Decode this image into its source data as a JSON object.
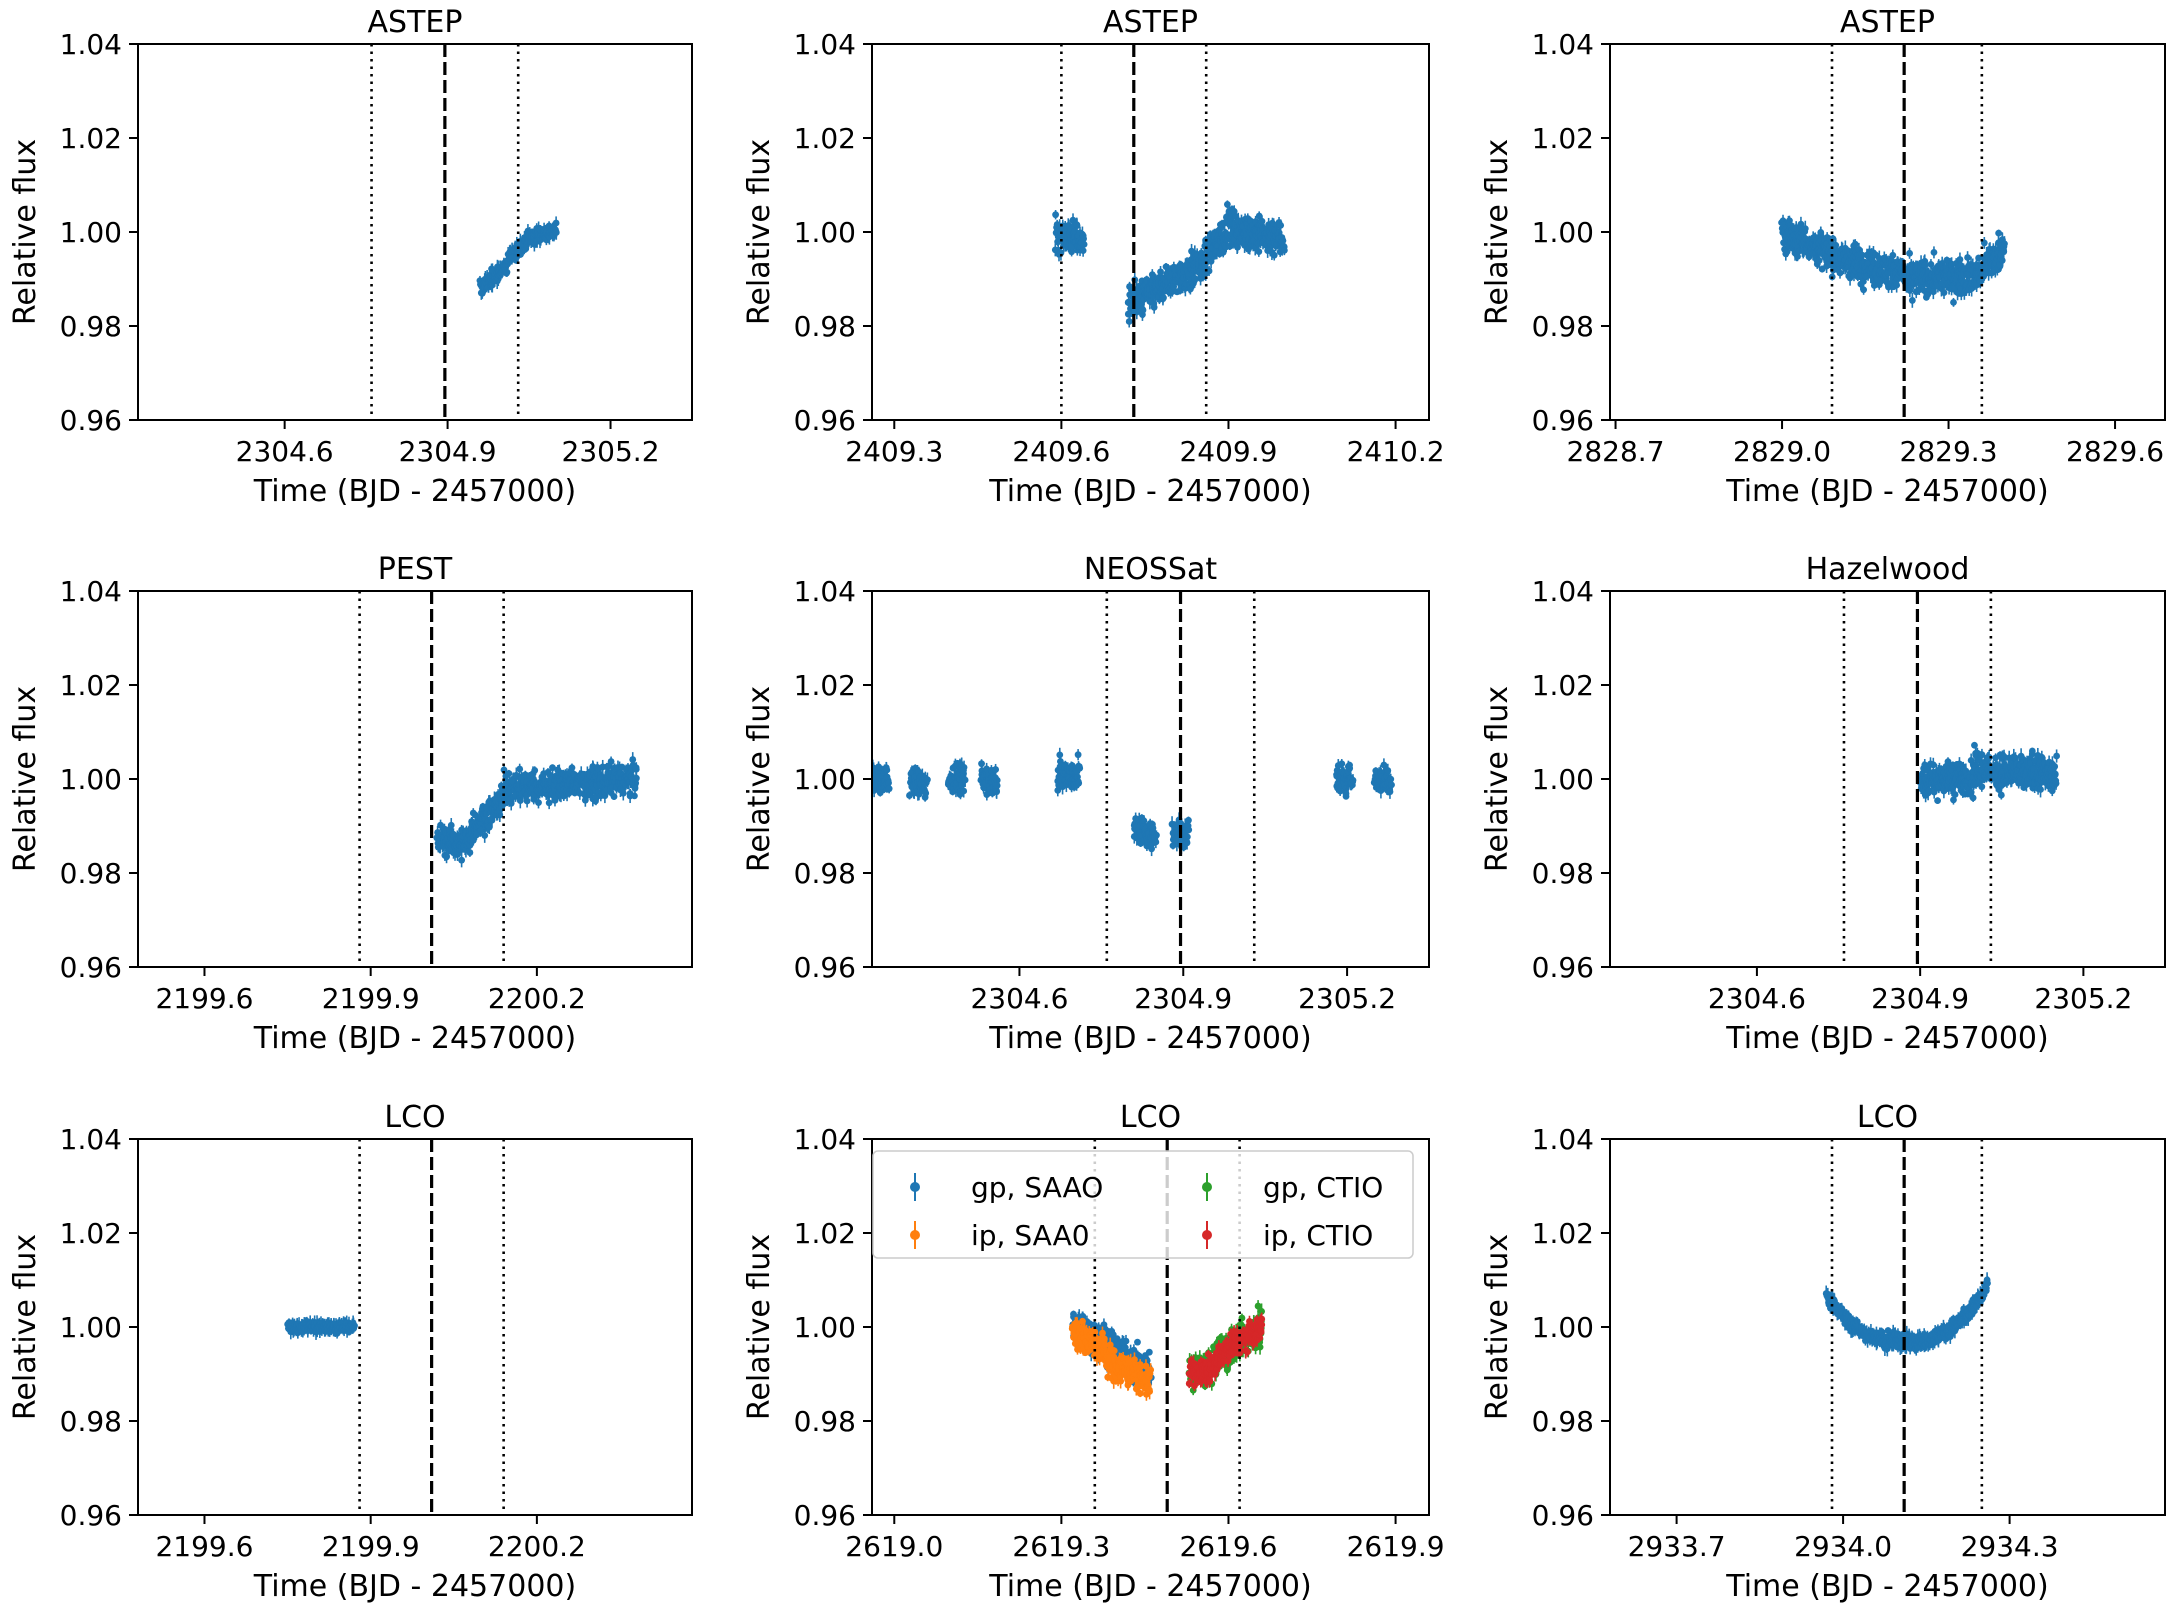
{
  "chart_data": [
    {
      "type": "scatter",
      "title": "ASTEP",
      "xlabel": "Time (BJD - 2457000)",
      "ylabel": "Relative flux",
      "xlim": [
        2304.33,
        2305.35
      ],
      "ylim": [
        0.96,
        1.04
      ],
      "xticks": [
        "2304.6",
        "2304.9",
        "2305.2"
      ],
      "xtick_values": [
        2304.6,
        2304.9,
        2305.2
      ],
      "yticks": [
        "0.96",
        "0.98",
        "1.00",
        "1.02",
        "1.04"
      ],
      "vlines": {
        "ingress": 2304.76,
        "mid": 2304.895,
        "egress": 2305.03
      },
      "series": [
        {
          "name": "ASTEP",
          "color": "#1f77b4",
          "segments": [
            [
              2304.96,
              0.988,
              2305.01,
              0.993
            ],
            [
              2305.01,
              0.994,
              2305.05,
              0.999
            ],
            [
              2305.05,
              0.999,
              2305.1,
              1.0
            ]
          ],
          "scatter": 0.0018
        }
      ]
    },
    {
      "type": "scatter",
      "title": "ASTEP",
      "xlabel": "Time (BJD - 2457000)",
      "ylabel": "Relative flux",
      "xlim": [
        2409.26,
        2410.26
      ],
      "ylim": [
        0.96,
        1.04
      ],
      "xticks": [
        "2409.3",
        "2409.6",
        "2409.9",
        "2410.2"
      ],
      "xtick_values": [
        2409.3,
        2409.6,
        2409.9,
        2410.2
      ],
      "yticks": [
        "0.96",
        "0.98",
        "1.00",
        "1.02",
        "1.04"
      ],
      "vlines": {
        "ingress": 2409.6,
        "mid": 2409.73,
        "egress": 2409.86
      },
      "series": [
        {
          "name": "ASTEP",
          "color": "#1f77b4",
          "segments": [
            [
              2409.59,
              1.0,
              2409.64,
              0.998
            ],
            [
              2409.72,
              0.985,
              2409.78,
              0.988
            ],
            [
              2409.78,
              0.988,
              2409.86,
              0.994
            ],
            [
              2409.86,
              0.995,
              2409.9,
              1.001
            ],
            [
              2409.9,
              1.001,
              2410.0,
              0.998
            ]
          ],
          "scatter": 0.004
        }
      ]
    },
    {
      "type": "scatter",
      "title": "ASTEP",
      "xlabel": "Time (BJD - 2457000)",
      "ylabel": "Relative flux",
      "xlim": [
        2828.69,
        2829.69
      ],
      "ylim": [
        0.96,
        1.04
      ],
      "xticks": [
        "2828.7",
        "2829.0",
        "2829.3",
        "2829.6"
      ],
      "xtick_values": [
        2828.7,
        2829.0,
        2829.3,
        2829.6
      ],
      "yticks": [
        "0.96",
        "0.98",
        "1.00",
        "1.02",
        "1.04"
      ],
      "vlines": {
        "ingress": 2829.09,
        "mid": 2829.22,
        "egress": 2829.36
      },
      "series": [
        {
          "name": "ASTEP",
          "color": "#1f77b4",
          "segments": [
            [
              2829.0,
              1.0,
              2829.08,
              0.996
            ],
            [
              2829.08,
              0.995,
              2829.22,
              0.991
            ],
            [
              2829.22,
              0.99,
              2829.36,
              0.991
            ],
            [
              2829.36,
              0.992,
              2829.4,
              0.997
            ]
          ],
          "scatter": 0.004
        }
      ]
    },
    {
      "type": "scatter",
      "title": "PEST",
      "xlabel": "Time (BJD - 2457000)",
      "ylabel": "Relative flux",
      "xlim": [
        2199.48,
        2200.48
      ],
      "ylim": [
        0.96,
        1.04
      ],
      "xticks": [
        "2199.6",
        "2199.9",
        "2200.2"
      ],
      "xtick_values": [
        2199.6,
        2199.9,
        2200.2
      ],
      "yticks": [
        "0.96",
        "0.98",
        "1.00",
        "1.02",
        "1.04"
      ],
      "vlines": {
        "ingress": 2199.88,
        "mid": 2200.01,
        "egress": 2200.14
      },
      "series": [
        {
          "name": "PEST",
          "color": "#1f77b4",
          "segments": [
            [
              2200.02,
              0.987,
              2200.08,
              0.986
            ],
            [
              2200.08,
              0.989,
              2200.14,
              0.996
            ],
            [
              2200.14,
              0.998,
              2200.38,
              1.0
            ]
          ],
          "scatter": 0.0035
        }
      ]
    },
    {
      "type": "scatter",
      "title": "NEOSSat",
      "xlabel": "Time (BJD - 2457000)",
      "ylabel": "Relative flux",
      "xlim": [
        2304.33,
        2305.35
      ],
      "ylim": [
        0.96,
        1.04
      ],
      "xticks": [
        "2304.6",
        "2304.9",
        "2305.2"
      ],
      "xtick_values": [
        2304.6,
        2304.9,
        2305.2
      ],
      "yticks": [
        "0.96",
        "0.98",
        "1.00",
        "1.02",
        "1.04"
      ],
      "vlines": {
        "ingress": 2304.76,
        "mid": 2304.895,
        "egress": 2305.03
      },
      "series": [
        {
          "name": "NEOSSat",
          "color": "#1f77b4",
          "segments": [
            [
              2304.33,
              1.0,
              2304.36,
              1.0
            ],
            [
              2304.4,
              0.999,
              2304.43,
              0.999
            ],
            [
              2304.47,
              1.0,
              2304.5,
              1.0
            ],
            [
              2304.53,
              1.0,
              2304.56,
              1.0
            ],
            [
              2304.67,
              1.001,
              2304.71,
              1.001
            ],
            [
              2304.81,
              0.989,
              2304.85,
              0.988
            ],
            [
              2304.88,
              0.988,
              2304.91,
              0.988
            ],
            [
              2305.18,
              1.0,
              2305.21,
              1.0
            ],
            [
              2305.25,
              1.0,
              2305.28,
              1.0
            ]
          ],
          "scatter": 0.0035
        }
      ]
    },
    {
      "type": "scatter",
      "title": "Hazelwood",
      "xlabel": "Time (BJD - 2457000)",
      "ylabel": "Relative flux",
      "xlim": [
        2304.33,
        2305.35
      ],
      "ylim": [
        0.96,
        1.04
      ],
      "xticks": [
        "2304.6",
        "2304.9",
        "2305.2"
      ],
      "xtick_values": [
        2304.6,
        2304.9,
        2305.2
      ],
      "yticks": [
        "0.96",
        "0.98",
        "1.00",
        "1.02",
        "1.04"
      ],
      "vlines": {
        "ingress": 2304.76,
        "mid": 2304.895,
        "egress": 2305.03
      },
      "series": [
        {
          "name": "Hazelwood",
          "color": "#1f77b4",
          "segments": [
            [
              2304.9,
              1.0,
              2305.0,
              1.0
            ],
            [
              2305.0,
              1.002,
              2305.15,
              1.001
            ]
          ],
          "scatter": 0.004
        }
      ]
    },
    {
      "type": "scatter",
      "title": "LCO",
      "xlabel": "Time (BJD - 2457000)",
      "ylabel": "Relative flux",
      "xlim": [
        2199.48,
        2200.48
      ],
      "ylim": [
        0.96,
        1.04
      ],
      "xticks": [
        "2199.6",
        "2199.9",
        "2200.2"
      ],
      "xtick_values": [
        2199.6,
        2199.9,
        2200.2
      ],
      "yticks": [
        "0.96",
        "0.98",
        "1.00",
        "1.02",
        "1.04"
      ],
      "vlines": {
        "ingress": 2199.88,
        "mid": 2200.01,
        "egress": 2200.14
      },
      "series": [
        {
          "name": "LCO",
          "color": "#1f77b4",
          "segments": [
            [
              2199.75,
              1.0,
              2199.87,
              1.0
            ]
          ],
          "scatter": 0.0012
        }
      ]
    },
    {
      "type": "scatter",
      "title": "LCO",
      "xlabel": "Time (BJD - 2457000)",
      "ylabel": "Relative flux",
      "xlim": [
        2618.96,
        2619.96
      ],
      "ylim": [
        0.96,
        1.04
      ],
      "xticks": [
        "2619.0",
        "2619.3",
        "2619.6",
        "2619.9"
      ],
      "xtick_values": [
        2619.0,
        2619.3,
        2619.6,
        2619.9
      ],
      "yticks": [
        "0.96",
        "0.98",
        "1.00",
        "1.02",
        "1.04"
      ],
      "vlines": {
        "ingress": 2619.36,
        "mid": 2619.49,
        "egress": 2619.62
      },
      "legend": {
        "location": "upper center",
        "ncols": 2
      },
      "series": [
        {
          "name": "gp, SAAO",
          "color": "#1f77b4",
          "segments": [
            [
              2619.32,
              1.0,
              2619.38,
              0.997
            ],
            [
              2619.38,
              0.996,
              2619.46,
              0.99
            ]
          ],
          "scatter": 0.004
        },
        {
          "name": "ip, SAA0",
          "color": "#ff7f0e",
          "segments": [
            [
              2619.32,
              0.999,
              2619.38,
              0.995
            ],
            [
              2619.38,
              0.993,
              2619.46,
              0.988
            ]
          ],
          "scatter": 0.0035
        },
        {
          "name": "gp, CTIO",
          "color": "#2ca02c",
          "segments": [
            [
              2619.53,
              0.99,
              2619.58,
              0.992
            ],
            [
              2619.58,
              0.994,
              2619.66,
              1.0
            ]
          ],
          "scatter": 0.004
        },
        {
          "name": "ip, CTIO",
          "color": "#d62728",
          "segments": [
            [
              2619.53,
              0.99,
              2619.58,
              0.992
            ],
            [
              2619.58,
              0.994,
              2619.66,
              1.0
            ]
          ],
          "scatter": 0.003
        }
      ]
    },
    {
      "type": "scatter",
      "title": "LCO",
      "xlabel": "Time (BJD - 2457000)",
      "ylabel": "Relative flux",
      "xlim": [
        2933.58,
        2934.58
      ],
      "ylim": [
        0.96,
        1.04
      ],
      "xticks": [
        "2933.7",
        "2934.0",
        "2934.3"
      ],
      "xtick_values": [
        2933.7,
        2934.0,
        2934.3
      ],
      "yticks": [
        "0.96",
        "0.98",
        "1.00",
        "1.02",
        "1.04"
      ],
      "vlines": {
        "ingress": 2933.98,
        "mid": 2934.11,
        "egress": 2934.25
      },
      "series": [
        {
          "name": "LCO",
          "color": "#1f77b4",
          "curve": {
            "x0": 2933.97,
            "x1": 2934.26,
            "xc": 2934.11,
            "ymin": 0.997,
            "ymax": 1.009
          },
          "scatter": 0.0017
        }
      ]
    }
  ]
}
